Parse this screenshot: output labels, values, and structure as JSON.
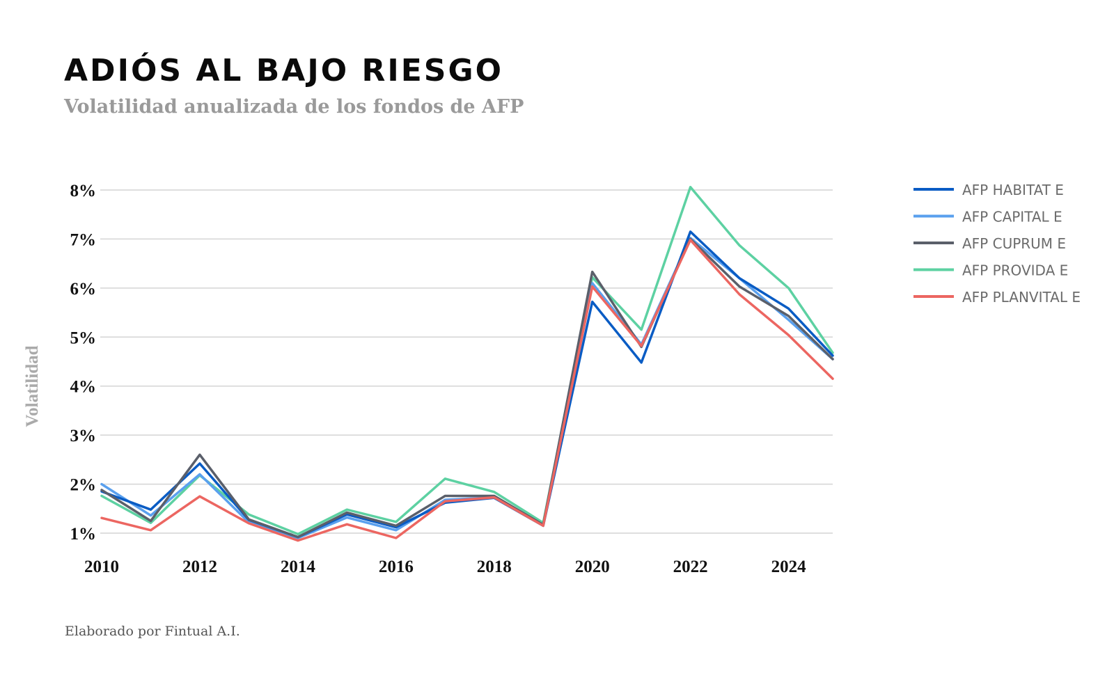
{
  "header": {
    "title": "ADIÓS AL BAJO RIESGO",
    "subtitle": "Volatilidad anualizada de los fondos de AFP"
  },
  "footer": {
    "credit": "Elaborado por Fintual A.I."
  },
  "chart_data": {
    "type": "line",
    "title": "ADIÓS AL BAJO RIESGO",
    "subtitle": "Volatilidad anualizada de los fondos de AFP",
    "xlabel": "",
    "ylabel": "Volatilidad",
    "x": [
      2010,
      2011,
      2012,
      2013,
      2014,
      2015,
      2016,
      2017,
      2018,
      2019,
      2020,
      2021,
      2022,
      2023,
      2024,
      2024.9
    ],
    "xticks": [
      2010,
      2012,
      2014,
      2016,
      2018,
      2020,
      2022,
      2024
    ],
    "xtick_labels": [
      "2010",
      "2012",
      "2014",
      "2016",
      "2018",
      "2020",
      "2022",
      "2024"
    ],
    "xlim": [
      2010,
      2024.9
    ],
    "yticks": [
      1,
      2,
      3,
      4,
      5,
      6,
      7,
      8
    ],
    "ytick_labels": [
      "1%",
      "2%",
      "3%",
      "4%",
      "5%",
      "6%",
      "7%",
      "8%"
    ],
    "ylim": [
      1,
      8
    ],
    "grid": true,
    "legend_position": "right",
    "series": [
      {
        "name": "AFP HABITAT E",
        "color": "#0a5cc4",
        "values": [
          1.85,
          1.48,
          2.42,
          1.27,
          0.92,
          1.38,
          1.12,
          1.62,
          1.72,
          1.15,
          5.72,
          4.48,
          7.15,
          6.2,
          5.58,
          4.62
        ]
      },
      {
        "name": "AFP CAPITAL E",
        "color": "#5aa0ee",
        "values": [
          2.0,
          1.36,
          2.2,
          1.22,
          0.9,
          1.32,
          1.06,
          1.68,
          1.73,
          1.16,
          6.1,
          4.85,
          7.02,
          6.2,
          5.35,
          4.55
        ]
      },
      {
        "name": "AFP CUPRUM E",
        "color": "#5a5f6a",
        "values": [
          1.88,
          1.25,
          2.6,
          1.28,
          0.92,
          1.42,
          1.15,
          1.76,
          1.76,
          1.17,
          6.33,
          4.8,
          7.0,
          6.03,
          5.43,
          4.55
        ]
      },
      {
        "name": "AFP PROVIDA E",
        "color": "#5dd1a2",
        "values": [
          1.76,
          1.21,
          2.18,
          1.38,
          0.98,
          1.48,
          1.23,
          2.11,
          1.84,
          1.21,
          6.22,
          5.15,
          8.06,
          6.87,
          6.0,
          4.68
        ]
      },
      {
        "name": "AFP PLANVITAL E",
        "color": "#ec6661",
        "values": [
          1.31,
          1.06,
          1.75,
          1.2,
          0.85,
          1.18,
          0.9,
          1.65,
          1.73,
          1.15,
          6.03,
          4.82,
          6.98,
          5.87,
          5.04,
          4.15
        ]
      }
    ]
  }
}
